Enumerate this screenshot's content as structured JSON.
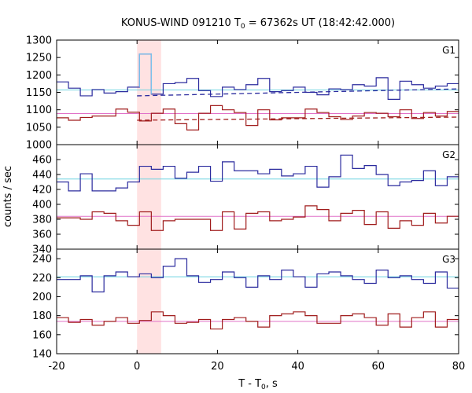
{
  "chart_data": {
    "type": "line",
    "title": {
      "prefix": "KONUS-WIND 091210 T",
      "sub": "0",
      "suffix": " = 67362s UT (18:42:42.000)"
    },
    "xlabel": {
      "main": "T - T",
      "sub": "0",
      "suffix": ", s"
    },
    "ylabel": "counts / sec",
    "xlim": [
      -20,
      80
    ],
    "x_ticks": [
      -20,
      0,
      20,
      40,
      60,
      80
    ],
    "highlight_interval": [
      0,
      6
    ],
    "bin_start": -20,
    "bin_width": 2.944,
    "colors": {
      "upper_series": "#2b2b9e",
      "lower_series": "#a01c1c",
      "upper_level": "#6fd3e0",
      "lower_level": "#e070c8",
      "highlight": "#ffe2e2",
      "upper_peak": "#7ec8f0"
    },
    "panels": [
      {
        "name": "G1",
        "ylim": [
          1000,
          1300
        ],
        "yticks": [
          1000,
          1050,
          1100,
          1150,
          1200,
          1250,
          1300
        ],
        "levels": {
          "upper": 1157,
          "lower": 1089
        },
        "dashed": [
          {
            "series": "upper",
            "from": 0,
            "to": 80,
            "y0": 1140,
            "y1": 1160
          },
          {
            "series": "lower",
            "from": 0,
            "to": 80,
            "y0": 1070,
            "y1": 1079
          }
        ],
        "peak": {
          "bin": 7,
          "value": 1260
        },
        "series": [
          {
            "role": "upper",
            "values": [
              1180,
              1162,
              1140,
              1158,
              1148,
              1152,
              1165,
              1260,
              1145,
              1175,
              1178,
              1190,
              1155,
              1138,
              1165,
              1158,
              1172,
              1190,
              1152,
              1155,
              1165,
              1150,
              1143,
              1160,
              1158,
              1172,
              1168,
              1192,
              1130,
              1182,
              1172,
              1162,
              1168,
              1175
            ]
          },
          {
            "role": "lower",
            "values": [
              1077,
              1070,
              1078,
              1082,
              1082,
              1102,
              1093,
              1068,
              1090,
              1102,
              1060,
              1042,
              1090,
              1112,
              1100,
              1092,
              1055,
              1100,
              1071,
              1077,
              1077,
              1102,
              1092,
              1080,
              1072,
              1082,
              1092,
              1090,
              1080,
              1100,
              1075,
              1092,
              1082,
              1095
            ]
          }
        ]
      },
      {
        "name": "G2",
        "ylim": [
          340,
          480
        ],
        "yticks": [
          340,
          360,
          380,
          400,
          420,
          440,
          460
        ],
        "levels": {
          "upper": 434,
          "lower": 384
        },
        "series": [
          {
            "role": "upper",
            "values": [
              430,
              418,
              441,
              418,
              418,
              422,
              430,
              451,
              447,
              451,
              435,
              443,
              451,
              431,
              457,
              445,
              445,
              441,
              447,
              438,
              441,
              451,
              423,
              437,
              466,
              448,
              452,
              440,
              425,
              430,
              432,
              445,
              425,
              437
            ]
          },
          {
            "role": "lower",
            "values": [
              382,
              382,
              380,
              390,
              388,
              378,
              372,
              390,
              365,
              378,
              380,
              380,
              380,
              365,
              390,
              367,
              388,
              390,
              378,
              380,
              383,
              398,
              393,
              378,
              388,
              392,
              373,
              390,
              368,
              378,
              372,
              388,
              375,
              384
            ]
          }
        ]
      },
      {
        "name": "G3",
        "ylim": [
          140,
          250
        ],
        "yticks": [
          140,
          160,
          180,
          200,
          220,
          240
        ],
        "levels": {
          "upper": 221,
          "lower": 174
        },
        "series": [
          {
            "role": "upper",
            "values": [
              218,
              218,
              222,
              205,
              222,
              226,
              221,
              224,
              220,
              232,
              240,
              222,
              215,
              218,
              226,
              220,
              210,
              222,
              218,
              228,
              221,
              210,
              224,
              226,
              222,
              218,
              214,
              228,
              220,
              222,
              218,
              214,
              226,
              209
            ]
          },
          {
            "role": "lower",
            "values": [
              178,
              173,
              176,
              170,
              174,
              178,
              172,
              175,
              184,
              180,
              172,
              173,
              176,
              166,
              176,
              178,
              174,
              168,
              180,
              182,
              184,
              180,
              172,
              172,
              180,
              182,
              178,
              170,
              182,
              168,
              178,
              184,
              168,
              176
            ]
          }
        ]
      }
    ]
  }
}
